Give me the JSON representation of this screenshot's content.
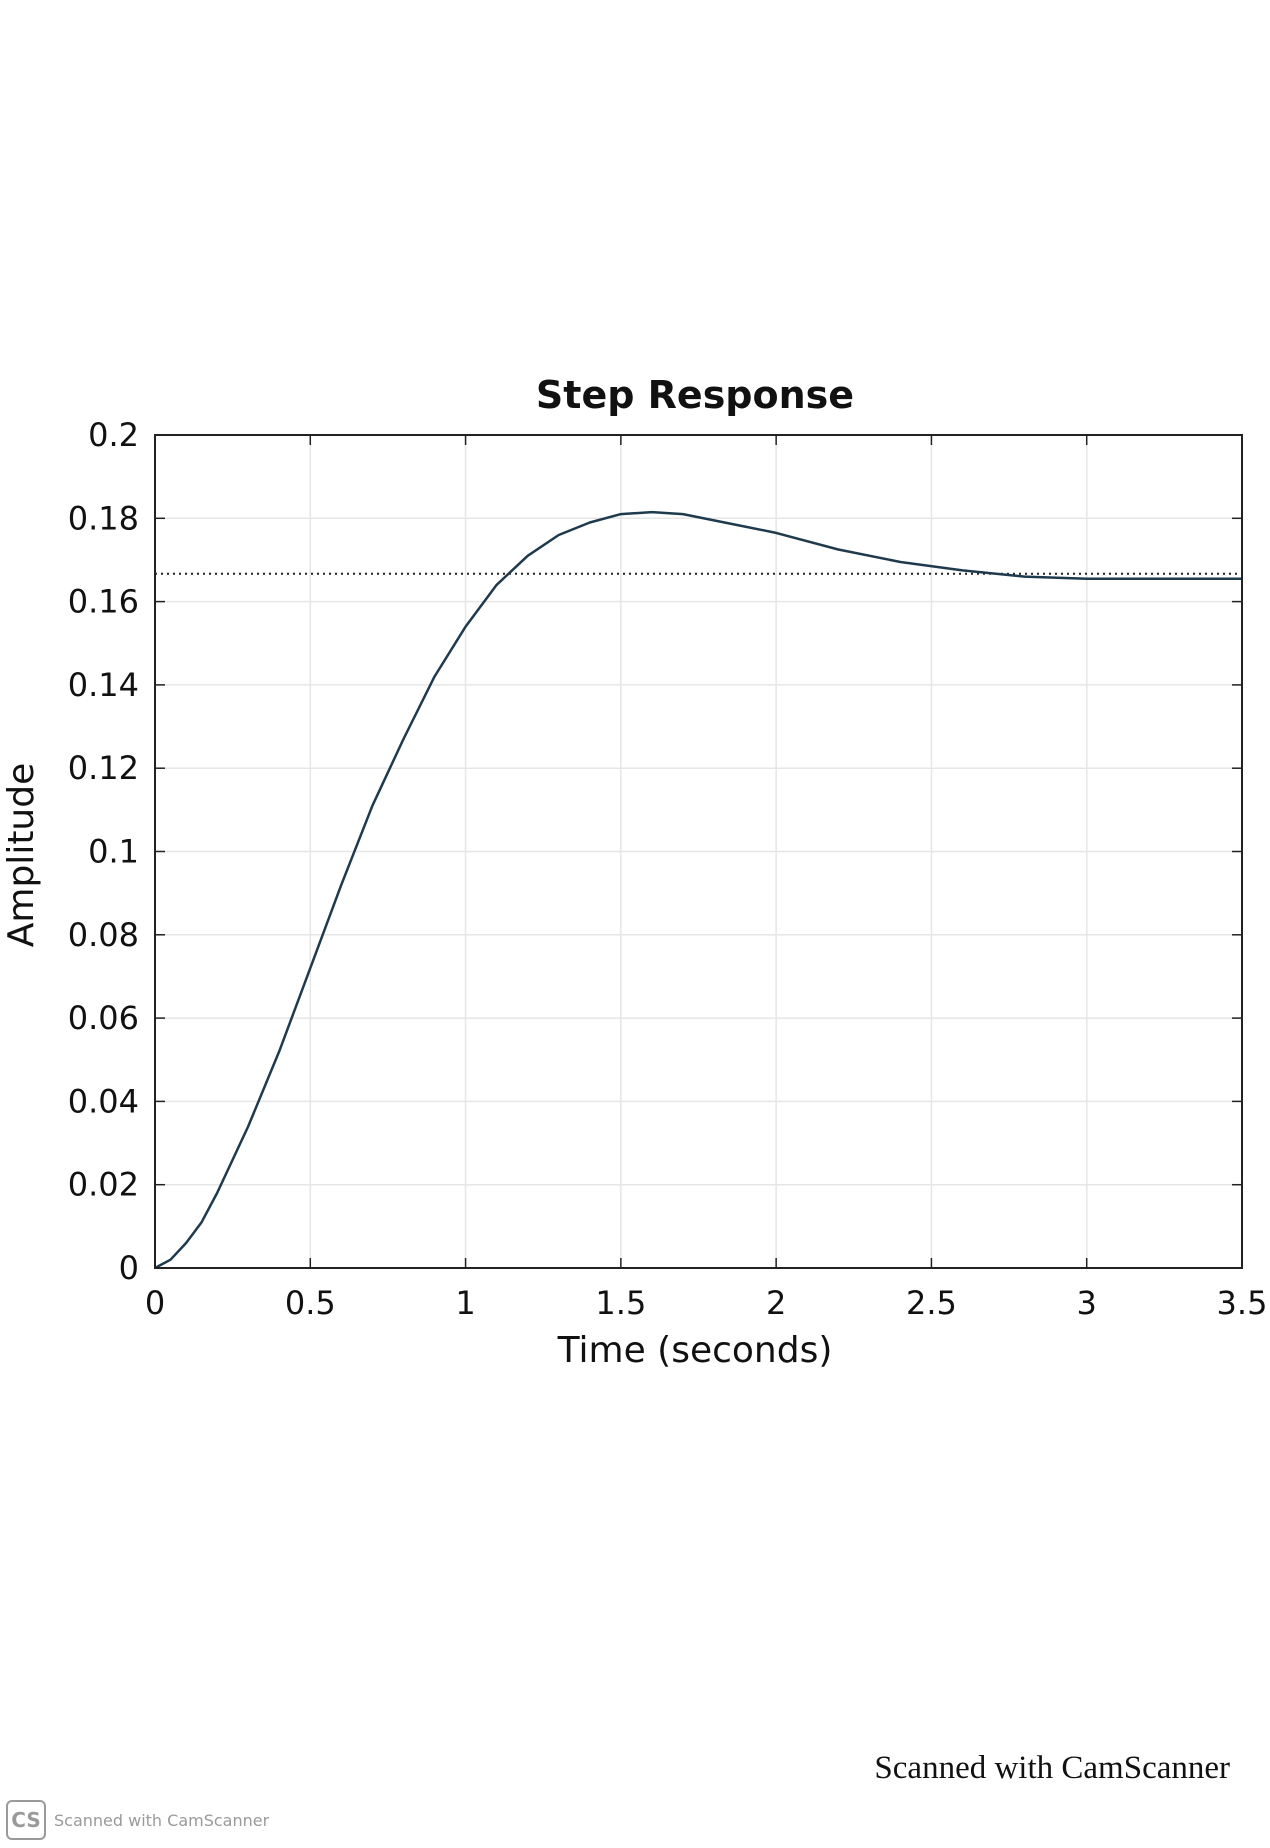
{
  "chart_data": {
    "type": "line",
    "title": "Step Response",
    "xlabel": "Time (seconds)",
    "ylabel": "Amplitude",
    "xlim": [
      0,
      3.5
    ],
    "ylim": [
      0,
      0.2
    ],
    "x_ticks": [
      0,
      0.5,
      1,
      1.5,
      2,
      2.5,
      3,
      3.5
    ],
    "x_tick_labels": [
      "0",
      "0.5",
      "1",
      "1.5",
      "2",
      "2.5",
      "3",
      "3.5"
    ],
    "y_ticks": [
      0,
      0.02,
      0.04,
      0.06,
      0.08,
      0.1,
      0.12,
      0.14,
      0.16,
      0.18,
      0.2
    ],
    "y_tick_labels": [
      "0",
      "0.02",
      "0.04",
      "0.06",
      "0.08",
      "0.1",
      "0.12",
      "0.14",
      "0.16",
      "0.18",
      "0.2"
    ],
    "grid": true,
    "steady_state_value": 0.1667,
    "series": [
      {
        "color": "#1f3a4d",
        "x": [
          0,
          0.05,
          0.1,
          0.15,
          0.2,
          0.3,
          0.4,
          0.5,
          0.6,
          0.7,
          0.8,
          0.9,
          1.0,
          1.1,
          1.2,
          1.3,
          1.4,
          1.5,
          1.6,
          1.7,
          1.8,
          1.9,
          2.0,
          2.2,
          2.4,
          2.6,
          2.8,
          3.0,
          3.2,
          3.5
        ],
        "y": [
          0,
          0.002,
          0.006,
          0.011,
          0.018,
          0.034,
          0.052,
          0.072,
          0.092,
          0.111,
          0.127,
          0.142,
          0.154,
          0.164,
          0.171,
          0.176,
          0.179,
          0.181,
          0.1815,
          0.181,
          0.1795,
          0.178,
          0.1765,
          0.1725,
          0.1695,
          0.1675,
          0.166,
          0.1655,
          0.1655,
          0.1655
        ]
      }
    ]
  },
  "watermark": {
    "scan_note": "Scanned with CamScanner",
    "logo_text": "CS",
    "badge_text": "Scanned with CamScanner"
  }
}
